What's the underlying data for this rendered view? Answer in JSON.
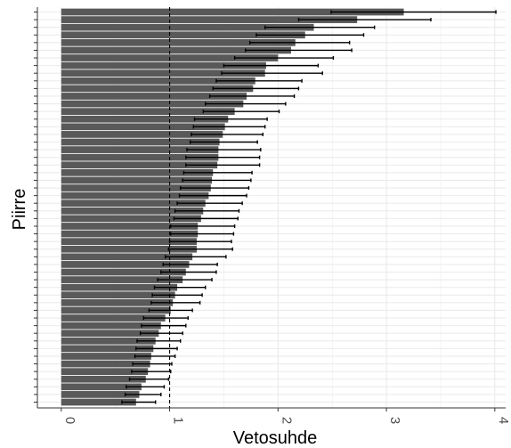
{
  "chart_data": {
    "type": "bar",
    "orientation": "horizontal",
    "xlabel": "Vetosuhde",
    "ylabel": "Piirre",
    "xlim": [
      -0.22,
      4.1
    ],
    "x_ticks": [
      "0",
      "1",
      "2",
      "3",
      "4"
    ],
    "x_tick_values": [
      0,
      1,
      2,
      3,
      4
    ],
    "reference_line": 1,
    "grid": true,
    "legend": "none",
    "bar_color": "#595959",
    "errorbar_color": "#000000",
    "series": [
      {
        "values": [
          3.16,
          2.73,
          2.33,
          2.25,
          2.16,
          2.12,
          2.0,
          1.89,
          1.88,
          1.79,
          1.77,
          1.71,
          1.68,
          1.6,
          1.54,
          1.51,
          1.49,
          1.46,
          1.45,
          1.45,
          1.44,
          1.4,
          1.39,
          1.38,
          1.36,
          1.33,
          1.31,
          1.29,
          1.26,
          1.26,
          1.25,
          1.25,
          1.21,
          1.18,
          1.15,
          1.12,
          1.07,
          1.05,
          1.03,
          1.01,
          0.96,
          0.92,
          0.9,
          0.87,
          0.85,
          0.83,
          0.82,
          0.8,
          0.78,
          0.74,
          0.72,
          0.69
        ],
        "ci_low": [
          2.49,
          2.19,
          1.88,
          1.8,
          1.74,
          1.7,
          1.6,
          1.5,
          1.48,
          1.43,
          1.4,
          1.37,
          1.33,
          1.31,
          1.23,
          1.22,
          1.2,
          1.19,
          1.16,
          1.15,
          1.15,
          1.13,
          1.12,
          1.1,
          1.09,
          1.07,
          1.05,
          1.04,
          1.01,
          1.01,
          1.0,
          0.99,
          0.96,
          0.94,
          0.92,
          0.89,
          0.86,
          0.84,
          0.83,
          0.81,
          0.76,
          0.74,
          0.73,
          0.7,
          0.69,
          0.68,
          0.66,
          0.65,
          0.63,
          0.6,
          0.59,
          0.56
        ],
        "ci_high": [
          4.01,
          3.41,
          2.89,
          2.79,
          2.66,
          2.68,
          2.51,
          2.37,
          2.41,
          2.22,
          2.19,
          2.15,
          2.07,
          2.01,
          1.9,
          1.88,
          1.86,
          1.81,
          1.84,
          1.83,
          1.83,
          1.76,
          1.75,
          1.73,
          1.71,
          1.67,
          1.64,
          1.63,
          1.6,
          1.59,
          1.57,
          1.58,
          1.52,
          1.44,
          1.43,
          1.39,
          1.33,
          1.3,
          1.28,
          1.21,
          1.17,
          1.15,
          1.12,
          1.1,
          1.07,
          1.05,
          1.02,
          1.01,
          0.99,
          0.95,
          0.92,
          0.87
        ]
      }
    ]
  }
}
